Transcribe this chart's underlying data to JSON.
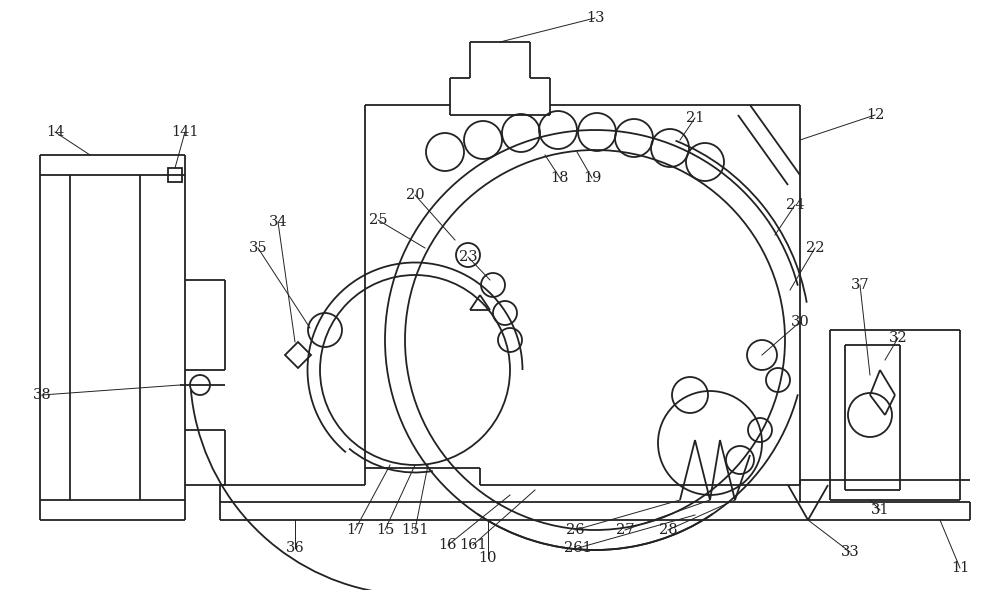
{
  "bg_color": "#ffffff",
  "line_color": "#222222",
  "lw": 1.3
}
